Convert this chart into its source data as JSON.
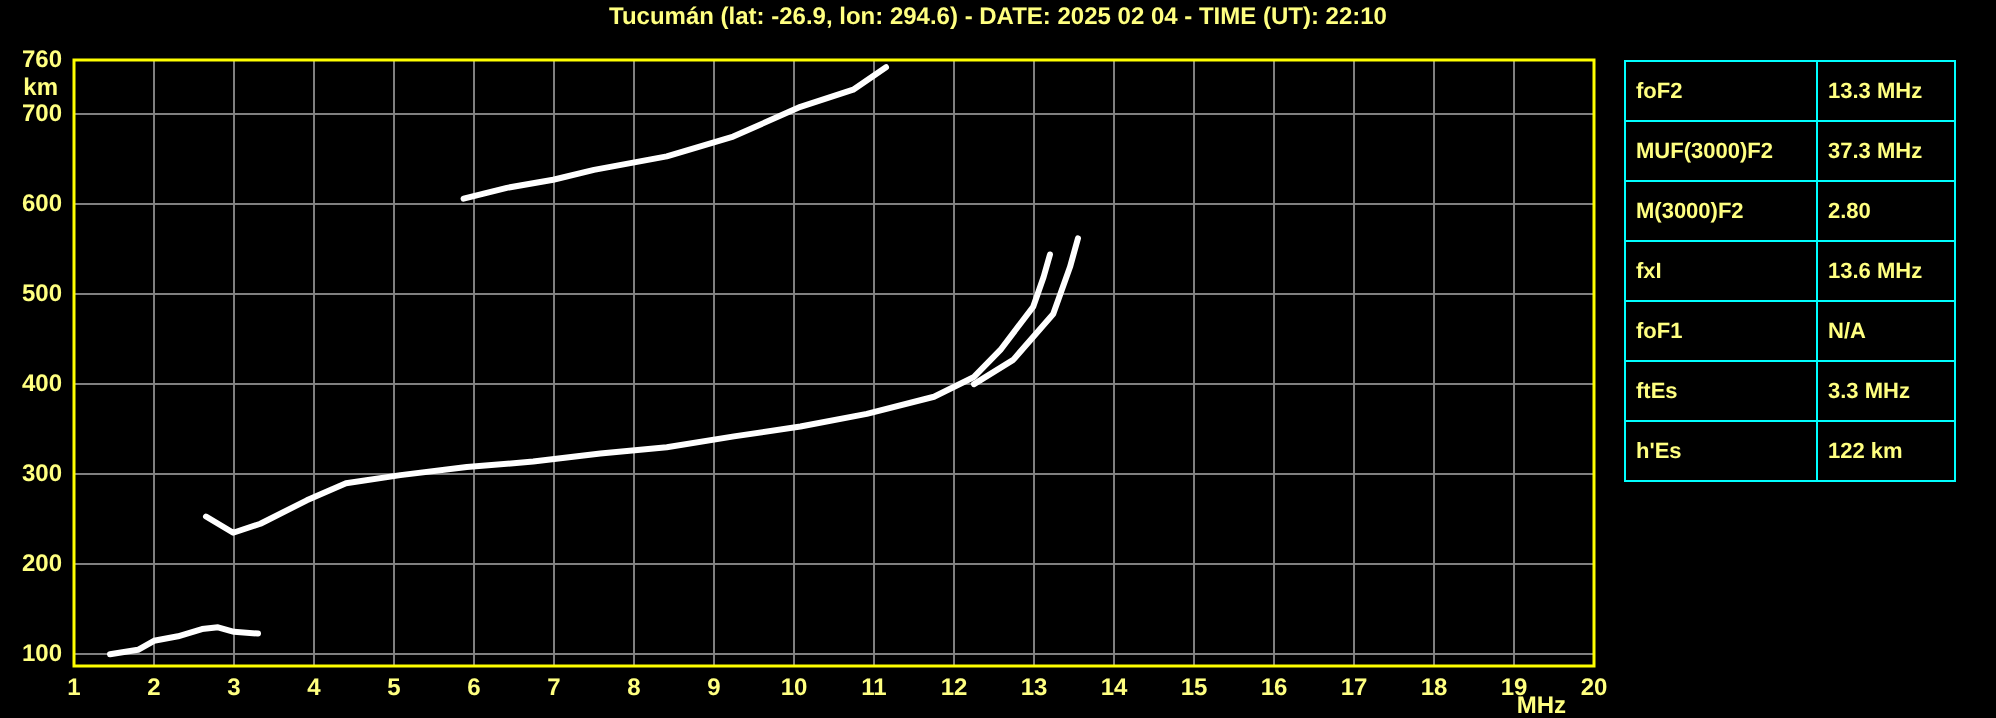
{
  "chart_data": {
    "type": "line",
    "title": "Tucumán (lat: -26.9, lon: 294.6) - DATE: 2025 02 04 - TIME (UT): 22:10",
    "xlabel": "MHz",
    "ylabel": "km",
    "xlim": [
      1,
      20
    ],
    "xticks": [
      1,
      2,
      3,
      4,
      5,
      6,
      7,
      8,
      9,
      10,
      11,
      12,
      13,
      14,
      15,
      16,
      17,
      18,
      19,
      20
    ],
    "ylim": [
      87,
      760
    ],
    "yticks": [
      100,
      200,
      300,
      400,
      500,
      600,
      700,
      760
    ],
    "grid": true,
    "legend": false,
    "marker": "none",
    "line_style": "solid",
    "series": [
      {
        "color": "#ffffff",
        "x": [
          1.45,
          1.8,
          2.0,
          2.3,
          2.6,
          2.8,
          3.0,
          3.3
        ],
        "values": [
          100,
          105,
          115,
          120,
          128,
          130,
          125,
          123
        ]
      },
      {
        "color": "#ffffff",
        "x": [
          2.65,
          2.99,
          3.33,
          3.91,
          4.4,
          5.08,
          5.91,
          6.74,
          7.58,
          8.41,
          9.25,
          10.08,
          10.91,
          11.75,
          12.25,
          12.58,
          12.99,
          13.12,
          13.2
        ],
        "values": [
          253,
          235,
          245,
          271,
          290,
          299,
          308,
          314,
          323,
          330,
          342,
          353,
          367,
          386,
          408,
          438,
          486,
          519,
          544
        ]
      },
      {
        "color": "#ffffff",
        "x": [
          12.25,
          12.74,
          13.24,
          13.45,
          13.55
        ],
        "values": [
          400,
          427,
          478,
          530,
          562
        ]
      },
      {
        "color": "#ffffff",
        "x": [
          5.87,
          6.41,
          6.99,
          7.5,
          8.41,
          9.24,
          10.08,
          10.74,
          11.15
        ],
        "values": [
          606,
          618,
          627,
          638,
          653,
          675,
          708,
          727,
          752
        ]
      }
    ],
    "annotations": [
      "foF2",
      "13.3 MHz",
      "MUF(3000)F2",
      "37.3 MHz",
      "M(3000)F2",
      "2.80",
      "fxI",
      "13.6 MHz",
      "foF1",
      "N/A",
      "ftEs",
      "3.3 MHz",
      "h'Es",
      "122 km"
    ]
  }
}
